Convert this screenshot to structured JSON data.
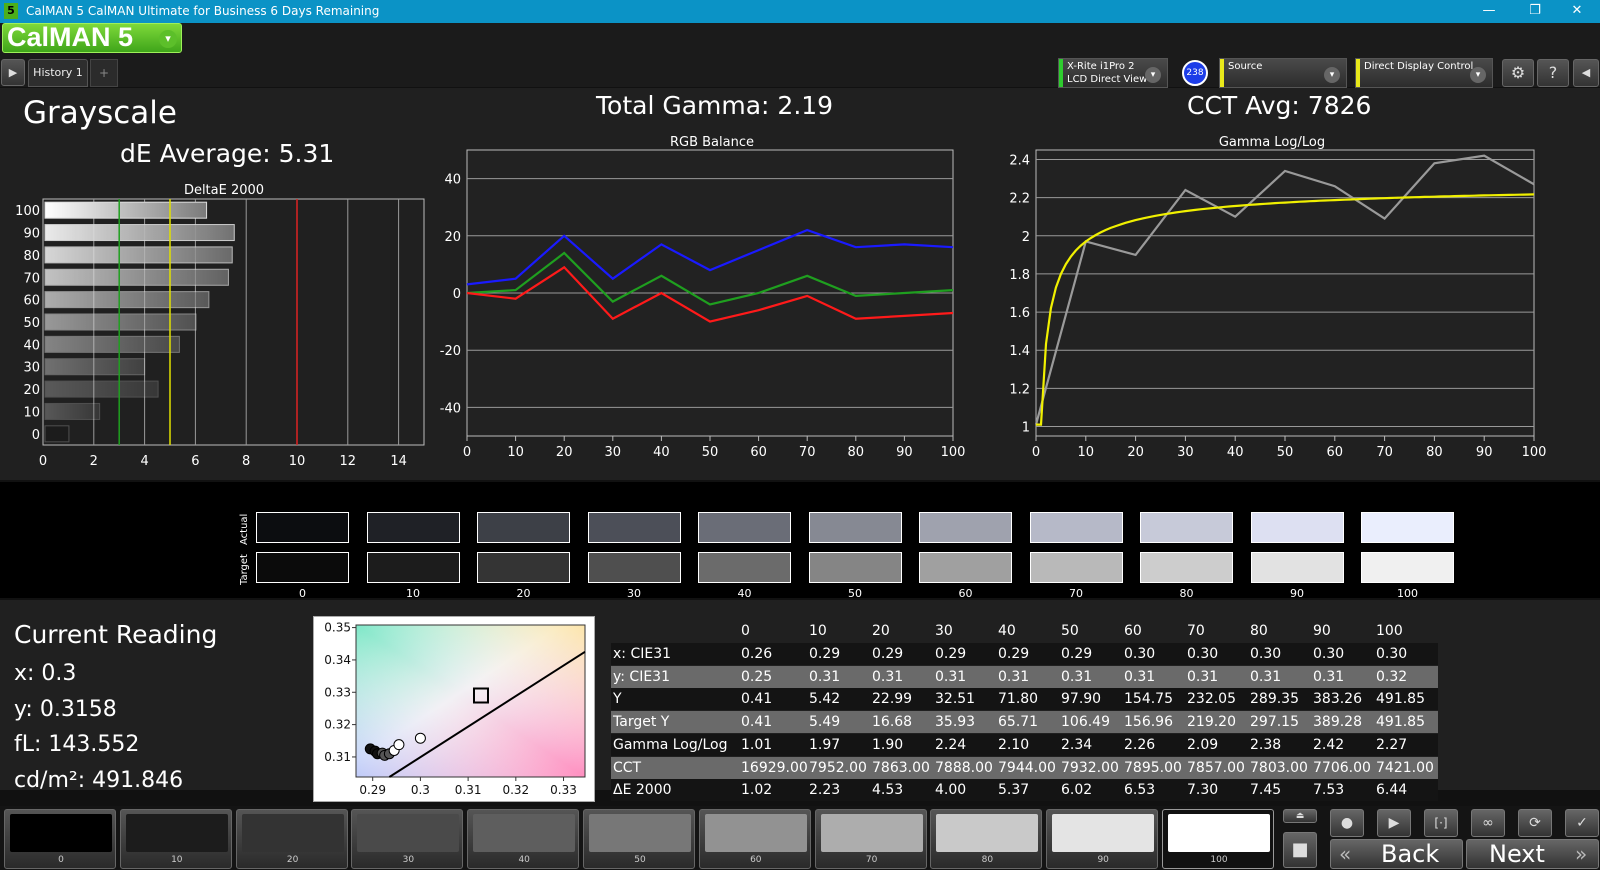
{
  "titlebar": {
    "title": "CalMAN 5 CalMAN Ultimate for Business 6 Days Remaining",
    "app_icon": "5",
    "minimize": "—",
    "maximize": "❐",
    "close": "✕"
  },
  "logo": {
    "text": "CalMAN 5",
    "caret": "▾"
  },
  "tabs": {
    "history": "History 1",
    "add": "+"
  },
  "devices": {
    "meter_line1": "X-Rite i1Pro 2",
    "meter_line2": "LCD Direct View",
    "meter_badge": "238",
    "source": "Source",
    "display": "Direct Display Control",
    "meter_color": "#2ecc2e",
    "source_color": "#e8e81a",
    "display_color": "#e8e81a"
  },
  "grayscale": {
    "title": "Grayscale",
    "de_average": "dE Average: 5.31",
    "total_gamma": "Total Gamma: 2.19",
    "cct_avg": "CCT Avg: 7826"
  },
  "chart_data": [
    {
      "type": "bar",
      "title": "DeltaE 2000",
      "orientation": "horizontal",
      "categories": [
        "100",
        "90",
        "80",
        "70",
        "60",
        "50",
        "40",
        "30",
        "20",
        "10",
        "0"
      ],
      "values": [
        6.44,
        7.53,
        7.45,
        7.3,
        6.53,
        6.02,
        5.37,
        4.0,
        4.53,
        2.23,
        1.02
      ],
      "xlim": [
        0,
        15
      ],
      "xticks": [
        "0",
        "2",
        "4",
        "6",
        "8",
        "10",
        "12",
        "14"
      ],
      "thresholds": [
        {
          "value": 3,
          "color": "#1fa01f"
        },
        {
          "value": 5,
          "color": "#e0e000"
        },
        {
          "value": 10,
          "color": "#dd2222"
        }
      ]
    },
    {
      "type": "line",
      "title": "RGB Balance",
      "x": [
        0,
        10,
        20,
        30,
        40,
        50,
        60,
        70,
        80,
        90,
        100
      ],
      "xticks": [
        "0",
        "10",
        "20",
        "30",
        "40",
        "50",
        "60",
        "70",
        "80",
        "90",
        "100"
      ],
      "yticks": [
        "40",
        "20",
        "0",
        "-20",
        "-40"
      ],
      "ylim": [
        -50,
        50
      ],
      "series": [
        {
          "color": "#1a1aff",
          "values": [
            3,
            5,
            20,
            5,
            17,
            8,
            15,
            22,
            16,
            17,
            16
          ]
        },
        {
          "color": "#1f9f1f",
          "values": [
            0,
            1,
            14,
            -3,
            6,
            -4,
            0,
            6,
            -1,
            0,
            1
          ]
        },
        {
          "color": "#ff1a1a",
          "values": [
            0,
            -2,
            9,
            -9,
            0,
            -10,
            -6,
            -1,
            -9,
            -8,
            -7
          ]
        }
      ]
    },
    {
      "type": "line",
      "title": "Gamma Log/Log",
      "x": [
        0,
        10,
        20,
        30,
        40,
        50,
        60,
        70,
        80,
        90,
        100
      ],
      "xticks": [
        "0",
        "10",
        "20",
        "30",
        "40",
        "50",
        "60",
        "70",
        "80",
        "90",
        "100"
      ],
      "yticks": [
        "2.4",
        "2.2",
        "2",
        "1.8",
        "1.6",
        "1.4",
        "1.2",
        "1"
      ],
      "ylim": [
        0.95,
        2.45
      ],
      "series": [
        {
          "color": "#9a9a9a",
          "values": [
            1.01,
            1.97,
            1.9,
            2.24,
            2.1,
            2.34,
            2.26,
            2.09,
            2.38,
            2.42,
            2.27
          ]
        },
        {
          "color": "#f0f000",
          "values": [
            1.01,
            1.97,
            2.1,
            2.16,
            2.2,
            2.22,
            2.24,
            2.25,
            2.26,
            2.27,
            2.28
          ]
        }
      ]
    },
    {
      "type": "scatter",
      "title": "",
      "xticks": [
        "0.29",
        "0.3",
        "0.31",
        "0.32",
        "0.33"
      ],
      "yticks": [
        "0.35",
        "0.34",
        "0.33",
        "0.32",
        "0.31"
      ],
      "xlim": [
        0.2865,
        0.3345
      ],
      "ylim": [
        0.3038,
        0.3508
      ],
      "target": [
        0.3127,
        0.329
      ],
      "points": [
        [
          0.2895,
          0.3125
        ],
        [
          0.2905,
          0.3118
        ],
        [
          0.291,
          0.311
        ],
        [
          0.292,
          0.3112
        ],
        [
          0.2925,
          0.3105
        ],
        [
          0.2935,
          0.311
        ],
        [
          0.2945,
          0.312
        ],
        [
          0.2955,
          0.3138
        ],
        [
          0.3,
          0.3158
        ]
      ]
    }
  ],
  "swatches": {
    "actual_label": "Actual",
    "target_label": "Target",
    "labels": [
      "0",
      "10",
      "20",
      "30",
      "40",
      "50",
      "60",
      "70",
      "80",
      "90",
      "100"
    ],
    "actual_colors": [
      "#0c0d10",
      "#1f2126",
      "#3d4047",
      "#4c4f58",
      "#6a6d77",
      "#868993",
      "#9fa2ae",
      "#b6b9c8",
      "#c7cad9",
      "#dde0f2",
      "#eaeefd"
    ],
    "target_colors": [
      "#0b0b0b",
      "#1c1c1c",
      "#343434",
      "#4f4f4f",
      "#6b6b6b",
      "#858585",
      "#a0a0a0",
      "#b9b9b9",
      "#cdcdcd",
      "#e2e2e2",
      "#f0f0f0"
    ]
  },
  "current_reading": {
    "title": "Current Reading",
    "x": "x: 0.3",
    "y": "y: 0.3158",
    "fl": "fL: 143.552",
    "cdm2": "cd/m²: 491.846"
  },
  "table": {
    "headers": [
      "0",
      "10",
      "20",
      "30",
      "40",
      "50",
      "60",
      "70",
      "80",
      "90",
      "100"
    ],
    "rows": [
      {
        "label": "x: CIE31",
        "values": [
          "0.26",
          "0.29",
          "0.29",
          "0.29",
          "0.29",
          "0.29",
          "0.30",
          "0.30",
          "0.30",
          "0.30",
          "0.30"
        ]
      },
      {
        "label": "y: CIE31",
        "values": [
          "0.25",
          "0.31",
          "0.31",
          "0.31",
          "0.31",
          "0.31",
          "0.31",
          "0.31",
          "0.31",
          "0.31",
          "0.32"
        ]
      },
      {
        "label": "Y",
        "values": [
          "0.41",
          "5.42",
          "22.99",
          "32.51",
          "71.80",
          "97.90",
          "154.75",
          "232.05",
          "289.35",
          "383.26",
          "491.85"
        ]
      },
      {
        "label": "Target Y",
        "values": [
          "0.41",
          "5.49",
          "16.68",
          "35.93",
          "65.71",
          "106.49",
          "156.96",
          "219.20",
          "297.15",
          "389.28",
          "491.85"
        ]
      },
      {
        "label": "Gamma Log/Log",
        "values": [
          "1.01",
          "1.97",
          "1.90",
          "2.24",
          "2.10",
          "2.34",
          "2.26",
          "2.09",
          "2.38",
          "2.42",
          "2.27"
        ]
      },
      {
        "label": "CCT",
        "values": [
          "16929.00",
          "7952.00",
          "7863.00",
          "7888.00",
          "7944.00",
          "7932.00",
          "7895.00",
          "7857.00",
          "7803.00",
          "7706.00",
          "7421.00"
        ]
      },
      {
        "label": "ΔE 2000",
        "values": [
          "1.02",
          "2.23",
          "4.53",
          "4.00",
          "5.37",
          "6.02",
          "6.53",
          "7.30",
          "7.45",
          "7.53",
          "6.44"
        ]
      }
    ]
  },
  "bottom": {
    "patches": [
      {
        "label": "0",
        "color": "#000000"
      },
      {
        "label": "10",
        "color": "#1c1c1c"
      },
      {
        "label": "20",
        "color": "#333333"
      },
      {
        "label": "30",
        "color": "#4a4a4a"
      },
      {
        "label": "40",
        "color": "#5e5e5e"
      },
      {
        "label": "50",
        "color": "#777777"
      },
      {
        "label": "60",
        "color": "#929292"
      },
      {
        "label": "70",
        "color": "#adadad"
      },
      {
        "label": "80",
        "color": "#c9c9c9"
      },
      {
        "label": "90",
        "color": "#e4e4e4"
      },
      {
        "label": "100",
        "color": "#ffffff"
      }
    ],
    "back": "Back",
    "next": "Next",
    "back_icon": "«",
    "next_icon": "»"
  }
}
